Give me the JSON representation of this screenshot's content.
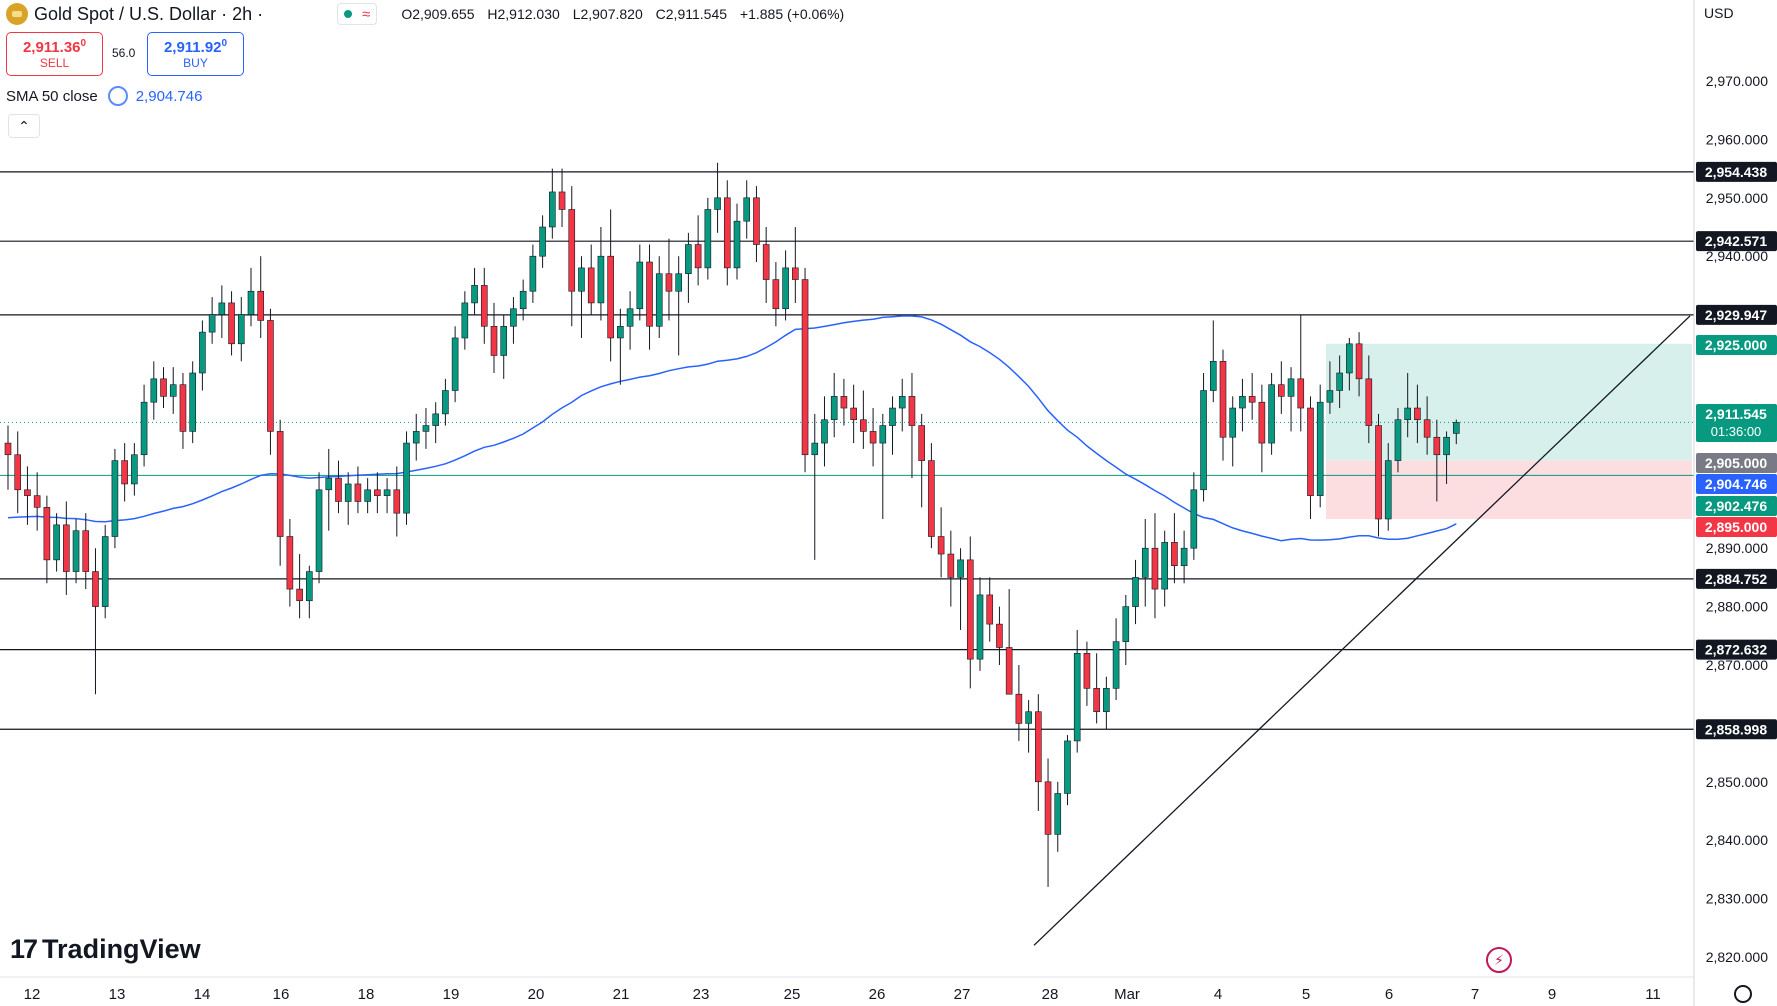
{
  "header": {
    "title": "Gold Spot / U.S. Dollar · 2h ·",
    "status_icon": "approx-icon",
    "open": "O2,909.655",
    "high": "H2,912.030",
    "low": "L2,907.820",
    "close": "C2,911.545",
    "change": "+1.885 (+0.06%)"
  },
  "trade": {
    "sell_price": "2,911.36",
    "sell_suffix": "0",
    "sell_label": "SELL",
    "spread": "56.0",
    "buy_price": "2,911.92",
    "buy_suffix": "0",
    "buy_label": "BUY"
  },
  "indicator": {
    "label": "SMA 50 close",
    "value": "2,904.746"
  },
  "currency": "USD",
  "brand": "TradingView",
  "colors": {
    "up": "#089981",
    "down": "#f23645",
    "sma": "#2962ff",
    "profit_zone": "#d1ede7",
    "loss_zone": "#fbd7da"
  },
  "chart_data": {
    "type": "candlestick",
    "symbol": "Gold Spot / U.S. Dollar",
    "timeframe": "2h",
    "y_axis_ticks": [
      2820,
      2830,
      2840,
      2850,
      2870,
      2880,
      2890,
      2940,
      2950,
      2960,
      2970
    ],
    "y_tick_labels": [
      "2,820.000",
      "2,830.000",
      "2,840.000",
      "2,850.000",
      "2,870.000",
      "2,880.000",
      "2,890.000",
      "2,940.000",
      "2,950.000",
      "2,960.000",
      "2,970.000"
    ],
    "x_axis_labels": [
      "12",
      "13",
      "14",
      "16",
      "18",
      "19",
      "20",
      "21",
      "23",
      "25",
      "26",
      "27",
      "28",
      "Mar",
      "4",
      "5",
      "6",
      "7",
      "9",
      "11"
    ],
    "horizontal_levels": [
      {
        "value": 2954.438,
        "label": "2,954.438"
      },
      {
        "value": 2942.571,
        "label": "2,942.571"
      },
      {
        "value": 2929.947,
        "label": "2,929.947"
      },
      {
        "value": 2884.752,
        "label": "2,884.752"
      },
      {
        "value": 2872.632,
        "label": "2,872.632"
      },
      {
        "value": 2858.998,
        "label": "2,858.998"
      }
    ],
    "price_tags": [
      {
        "value": 2925.0,
        "label": "2,925.000",
        "color": "#089981"
      },
      {
        "value": 2911.545,
        "label": "2,911.545",
        "sub": "01:36:00",
        "color": "#089981"
      },
      {
        "value": 2905.0,
        "label": "2,905.000",
        "color": "#787b86"
      },
      {
        "value": 2904.746,
        "label": "2,904.746",
        "color": "#2962ff"
      },
      {
        "value": 2902.476,
        "label": "2,902.476",
        "color": "#089981"
      },
      {
        "value": 2895.0,
        "label": "2,895.000",
        "color": "#f23645"
      }
    ],
    "position": {
      "entry": 2905.0,
      "take_profit": 2925.0,
      "stop_loss": 2895.0
    },
    "last_price": 2911.545,
    "sma50_last": 2904.746,
    "trendline": {
      "from": 2822.0,
      "to": 2926.0
    },
    "candles": [
      {
        "o": 2908,
        "h": 2911,
        "l": 2900,
        "c": 2906
      },
      {
        "o": 2906,
        "h": 2910,
        "l": 2896,
        "c": 2900
      },
      {
        "o": 2900,
        "h": 2904,
        "l": 2894,
        "c": 2899
      },
      {
        "o": 2899,
        "h": 2903,
        "l": 2893,
        "c": 2897
      },
      {
        "o": 2897,
        "h": 2899,
        "l": 2884,
        "c": 2888
      },
      {
        "o": 2888,
        "h": 2896,
        "l": 2886,
        "c": 2894
      },
      {
        "o": 2894,
        "h": 2898,
        "l": 2882,
        "c": 2886
      },
      {
        "o": 2886,
        "h": 2895,
        "l": 2884,
        "c": 2893
      },
      {
        "o": 2893,
        "h": 2896,
        "l": 2883,
        "c": 2886
      },
      {
        "o": 2886,
        "h": 2890,
        "l": 2865,
        "c": 2880
      },
      {
        "o": 2880,
        "h": 2894,
        "l": 2878,
        "c": 2892
      },
      {
        "o": 2892,
        "h": 2907,
        "l": 2890,
        "c": 2905
      },
      {
        "o": 2905,
        "h": 2908,
        "l": 2898,
        "c": 2901
      },
      {
        "o": 2901,
        "h": 2908,
        "l": 2899,
        "c": 2906
      },
      {
        "o": 2906,
        "h": 2918,
        "l": 2904,
        "c": 2915
      },
      {
        "o": 2915,
        "h": 2922,
        "l": 2912,
        "c": 2919
      },
      {
        "o": 2919,
        "h": 2921,
        "l": 2914,
        "c": 2916
      },
      {
        "o": 2916,
        "h": 2921,
        "l": 2913,
        "c": 2918
      },
      {
        "o": 2918,
        "h": 2920,
        "l": 2907,
        "c": 2910
      },
      {
        "o": 2910,
        "h": 2922,
        "l": 2908,
        "c": 2920
      },
      {
        "o": 2920,
        "h": 2929,
        "l": 2917,
        "c": 2927
      },
      {
        "o": 2927,
        "h": 2933,
        "l": 2925,
        "c": 2930
      },
      {
        "o": 2930,
        "h": 2935,
        "l": 2926,
        "c": 2932
      },
      {
        "o": 2932,
        "h": 2934,
        "l": 2923,
        "c": 2925
      },
      {
        "o": 2925,
        "h": 2933,
        "l": 2922,
        "c": 2930
      },
      {
        "o": 2930,
        "h": 2938,
        "l": 2928,
        "c": 2934
      },
      {
        "o": 2934,
        "h": 2940,
        "l": 2926,
        "c": 2929
      },
      {
        "o": 2929,
        "h": 2931,
        "l": 2906,
        "c": 2910
      },
      {
        "o": 2910,
        "h": 2912,
        "l": 2887,
        "c": 2892
      },
      {
        "o": 2892,
        "h": 2895,
        "l": 2880,
        "c": 2883
      },
      {
        "o": 2883,
        "h": 2889,
        "l": 2878,
        "c": 2881
      },
      {
        "o": 2881,
        "h": 2887,
        "l": 2878,
        "c": 2886
      },
      {
        "o": 2886,
        "h": 2903,
        "l": 2884,
        "c": 2900
      },
      {
        "o": 2900,
        "h": 2907,
        "l": 2893,
        "c": 2902
      },
      {
        "o": 2902,
        "h": 2905,
        "l": 2896,
        "c": 2898
      },
      {
        "o": 2898,
        "h": 2903,
        "l": 2894,
        "c": 2901
      },
      {
        "o": 2901,
        "h": 2904,
        "l": 2896,
        "c": 2898
      },
      {
        "o": 2898,
        "h": 2902,
        "l": 2896,
        "c": 2900
      },
      {
        "o": 2900,
        "h": 2903,
        "l": 2896,
        "c": 2899
      },
      {
        "o": 2899,
        "h": 2902,
        "l": 2896,
        "c": 2900
      },
      {
        "o": 2900,
        "h": 2904,
        "l": 2892,
        "c": 2896
      },
      {
        "o": 2896,
        "h": 2910,
        "l": 2894,
        "c": 2908
      },
      {
        "o": 2908,
        "h": 2913,
        "l": 2905,
        "c": 2910
      },
      {
        "o": 2910,
        "h": 2914,
        "l": 2907,
        "c": 2911
      },
      {
        "o": 2911,
        "h": 2915,
        "l": 2908,
        "c": 2913
      },
      {
        "o": 2913,
        "h": 2919,
        "l": 2911,
        "c": 2917
      },
      {
        "o": 2917,
        "h": 2928,
        "l": 2915,
        "c": 2926
      },
      {
        "o": 2926,
        "h": 2934,
        "l": 2924,
        "c": 2932
      },
      {
        "o": 2932,
        "h": 2938,
        "l": 2930,
        "c": 2935
      },
      {
        "o": 2935,
        "h": 2938,
        "l": 2925,
        "c": 2928
      },
      {
        "o": 2928,
        "h": 2932,
        "l": 2920,
        "c": 2923
      },
      {
        "o": 2923,
        "h": 2930,
        "l": 2919,
        "c": 2928
      },
      {
        "o": 2928,
        "h": 2933,
        "l": 2925,
        "c": 2931
      },
      {
        "o": 2931,
        "h": 2936,
        "l": 2929,
        "c": 2934
      },
      {
        "o": 2934,
        "h": 2942,
        "l": 2932,
        "c": 2940
      },
      {
        "o": 2940,
        "h": 2947,
        "l": 2938,
        "c": 2945
      },
      {
        "o": 2945,
        "h": 2955,
        "l": 2943,
        "c": 2951
      },
      {
        "o": 2951,
        "h": 2955,
        "l": 2945,
        "c": 2948
      },
      {
        "o": 2948,
        "h": 2952,
        "l": 2928,
        "c": 2934
      },
      {
        "o": 2934,
        "h": 2940,
        "l": 2926,
        "c": 2938
      },
      {
        "o": 2938,
        "h": 2942,
        "l": 2930,
        "c": 2932
      },
      {
        "o": 2932,
        "h": 2945,
        "l": 2929,
        "c": 2940
      },
      {
        "o": 2940,
        "h": 2948,
        "l": 2922,
        "c": 2926
      },
      {
        "o": 2926,
        "h": 2931,
        "l": 2918,
        "c": 2928
      },
      {
        "o": 2928,
        "h": 2934,
        "l": 2924,
        "c": 2931
      },
      {
        "o": 2931,
        "h": 2942,
        "l": 2929,
        "c": 2939
      },
      {
        "o": 2939,
        "h": 2942,
        "l": 2924,
        "c": 2928
      },
      {
        "o": 2928,
        "h": 2940,
        "l": 2926,
        "c": 2937
      },
      {
        "o": 2937,
        "h": 2943,
        "l": 2929,
        "c": 2934
      },
      {
        "o": 2934,
        "h": 2940,
        "l": 2923,
        "c": 2937
      },
      {
        "o": 2937,
        "h": 2944,
        "l": 2932,
        "c": 2942
      },
      {
        "o": 2942,
        "h": 2947,
        "l": 2935,
        "c": 2938
      },
      {
        "o": 2938,
        "h": 2950,
        "l": 2936,
        "c": 2948
      },
      {
        "o": 2948,
        "h": 2956,
        "l": 2944,
        "c": 2950
      },
      {
        "o": 2950,
        "h": 2953,
        "l": 2935,
        "c": 2938
      },
      {
        "o": 2938,
        "h": 2949,
        "l": 2936,
        "c": 2946
      },
      {
        "o": 2946,
        "h": 2953,
        "l": 2943,
        "c": 2950
      },
      {
        "o": 2950,
        "h": 2952,
        "l": 2939,
        "c": 2942
      },
      {
        "o": 2942,
        "h": 2945,
        "l": 2932,
        "c": 2936
      },
      {
        "o": 2936,
        "h": 2939,
        "l": 2928,
        "c": 2931
      },
      {
        "o": 2931,
        "h": 2941,
        "l": 2929,
        "c": 2938
      },
      {
        "o": 2938,
        "h": 2945,
        "l": 2932,
        "c": 2936
      },
      {
        "o": 2936,
        "h": 2938,
        "l": 2903,
        "c": 2906
      },
      {
        "o": 2906,
        "h": 2913,
        "l": 2888,
        "c": 2908
      },
      {
        "o": 2908,
        "h": 2916,
        "l": 2904,
        "c": 2912
      },
      {
        "o": 2912,
        "h": 2920,
        "l": 2909,
        "c": 2916
      },
      {
        "o": 2916,
        "h": 2919,
        "l": 2911,
        "c": 2914
      },
      {
        "o": 2914,
        "h": 2918,
        "l": 2908,
        "c": 2912
      },
      {
        "o": 2912,
        "h": 2917,
        "l": 2907,
        "c": 2910
      },
      {
        "o": 2910,
        "h": 2914,
        "l": 2904,
        "c": 2908
      },
      {
        "o": 2908,
        "h": 2913,
        "l": 2895,
        "c": 2911
      },
      {
        "o": 2911,
        "h": 2916,
        "l": 2906,
        "c": 2914
      },
      {
        "o": 2914,
        "h": 2919,
        "l": 2910,
        "c": 2916
      },
      {
        "o": 2916,
        "h": 2920,
        "l": 2902,
        "c": 2911
      },
      {
        "o": 2911,
        "h": 2913,
        "l": 2897,
        "c": 2905
      },
      {
        "o": 2905,
        "h": 2908,
        "l": 2890,
        "c": 2892
      },
      {
        "o": 2892,
        "h": 2897,
        "l": 2885,
        "c": 2889
      },
      {
        "o": 2889,
        "h": 2893,
        "l": 2880,
        "c": 2885
      },
      {
        "o": 2885,
        "h": 2890,
        "l": 2876,
        "c": 2888
      },
      {
        "o": 2888,
        "h": 2892,
        "l": 2866,
        "c": 2871
      },
      {
        "o": 2871,
        "h": 2885,
        "l": 2869,
        "c": 2882
      },
      {
        "o": 2882,
        "h": 2885,
        "l": 2874,
        "c": 2877
      },
      {
        "o": 2877,
        "h": 2880,
        "l": 2870,
        "c": 2873
      },
      {
        "o": 2873,
        "h": 2883,
        "l": 2866,
        "c": 2865
      },
      {
        "o": 2865,
        "h": 2870,
        "l": 2857,
        "c": 2860
      },
      {
        "o": 2860,
        "h": 2864,
        "l": 2855,
        "c": 2862
      },
      {
        "o": 2862,
        "h": 2865,
        "l": 2845,
        "c": 2850
      },
      {
        "o": 2850,
        "h": 2854,
        "l": 2832,
        "c": 2841
      },
      {
        "o": 2841,
        "h": 2850,
        "l": 2838,
        "c": 2848
      },
      {
        "o": 2848,
        "h": 2858,
        "l": 2846,
        "c": 2857
      },
      {
        "o": 2857,
        "h": 2876,
        "l": 2855,
        "c": 2872
      },
      {
        "o": 2872,
        "h": 2874,
        "l": 2863,
        "c": 2866
      },
      {
        "o": 2866,
        "h": 2872,
        "l": 2860,
        "c": 2862
      },
      {
        "o": 2862,
        "h": 2868,
        "l": 2859,
        "c": 2866
      },
      {
        "o": 2866,
        "h": 2878,
        "l": 2864,
        "c": 2874
      },
      {
        "o": 2874,
        "h": 2882,
        "l": 2870,
        "c": 2880
      },
      {
        "o": 2880,
        "h": 2888,
        "l": 2877,
        "c": 2885
      },
      {
        "o": 2885,
        "h": 2895,
        "l": 2880,
        "c": 2890
      },
      {
        "o": 2890,
        "h": 2896,
        "l": 2878,
        "c": 2883
      },
      {
        "o": 2883,
        "h": 2893,
        "l": 2880,
        "c": 2891
      },
      {
        "o": 2891,
        "h": 2896,
        "l": 2884,
        "c": 2887
      },
      {
        "o": 2887,
        "h": 2893,
        "l": 2884,
        "c": 2890
      },
      {
        "o": 2890,
        "h": 2903,
        "l": 2888,
        "c": 2900
      },
      {
        "o": 2900,
        "h": 2920,
        "l": 2898,
        "c": 2917
      },
      {
        "o": 2917,
        "h": 2929,
        "l": 2915,
        "c": 2922
      },
      {
        "o": 2922,
        "h": 2924,
        "l": 2905,
        "c": 2909
      },
      {
        "o": 2909,
        "h": 2916,
        "l": 2904,
        "c": 2914
      },
      {
        "o": 2914,
        "h": 2919,
        "l": 2910,
        "c": 2916
      },
      {
        "o": 2916,
        "h": 2920,
        "l": 2912,
        "c": 2915
      },
      {
        "o": 2915,
        "h": 2918,
        "l": 2903,
        "c": 2908
      },
      {
        "o": 2908,
        "h": 2920,
        "l": 2906,
        "c": 2918
      },
      {
        "o": 2918,
        "h": 2922,
        "l": 2913,
        "c": 2916
      },
      {
        "o": 2916,
        "h": 2921,
        "l": 2910,
        "c": 2919
      },
      {
        "o": 2919,
        "h": 2930,
        "l": 2910,
        "c": 2914
      },
      {
        "o": 2914,
        "h": 2916,
        "l": 2895,
        "c": 2899
      },
      {
        "o": 2899,
        "h": 2918,
        "l": 2897,
        "c": 2915
      },
      {
        "o": 2915,
        "h": 2922,
        "l": 2913,
        "c": 2917
      },
      {
        "o": 2917,
        "h": 2923,
        "l": 2914,
        "c": 2920
      },
      {
        "o": 2920,
        "h": 2926,
        "l": 2917,
        "c": 2925
      },
      {
        "o": 2925,
        "h": 2927,
        "l": 2916,
        "c": 2919
      },
      {
        "o": 2919,
        "h": 2923,
        "l": 2908,
        "c": 2911
      },
      {
        "o": 2911,
        "h": 2913,
        "l": 2892,
        "c": 2895
      },
      {
        "o": 2895,
        "h": 2908,
        "l": 2893,
        "c": 2905
      },
      {
        "o": 2905,
        "h": 2914,
        "l": 2903,
        "c": 2912
      },
      {
        "o": 2912,
        "h": 2920,
        "l": 2909,
        "c": 2914
      },
      {
        "o": 2914,
        "h": 2918,
        "l": 2908,
        "c": 2912
      },
      {
        "o": 2912,
        "h": 2916,
        "l": 2906,
        "c": 2909
      },
      {
        "o": 2909,
        "h": 2912,
        "l": 2898,
        "c": 2906
      },
      {
        "o": 2906,
        "h": 2910,
        "l": 2901,
        "c": 2909
      },
      {
        "o": 2909.655,
        "h": 2912.03,
        "l": 2907.82,
        "c": 2911.545
      }
    ]
  }
}
